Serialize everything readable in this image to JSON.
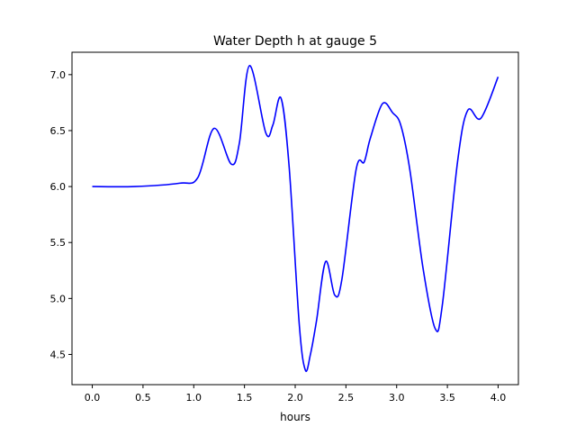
{
  "chart_data": {
    "type": "line",
    "title": "Water Depth h at gauge 5",
    "xlabel": "hours",
    "ylabel": "",
    "xlim": [
      -0.2,
      4.2
    ],
    "ylim": [
      4.23,
      7.2
    ],
    "xticks": [
      0.0,
      0.5,
      1.0,
      1.5,
      2.0,
      2.5,
      3.0,
      3.5,
      4.0
    ],
    "xtick_labels": [
      "0.0",
      "0.5",
      "1.0",
      "1.5",
      "2.0",
      "2.5",
      "3.0",
      "3.5",
      "4.0"
    ],
    "yticks": [
      4.5,
      5.0,
      5.5,
      6.0,
      6.5,
      7.0
    ],
    "ytick_labels": [
      "4.5",
      "5.0",
      "5.5",
      "6.0",
      "6.5",
      "7.0"
    ],
    "grid": false,
    "series": [
      {
        "name": "h",
        "color": "#0000ff",
        "x": [
          0,
          0.42,
          0.86,
          1.04,
          1.2,
          1.37,
          1.45,
          1.55,
          1.71,
          1.78,
          1.86,
          1.94,
          2.04,
          2.1,
          2.15,
          2.21,
          2.3,
          2.39,
          2.46,
          2.6,
          2.68,
          2.74,
          2.86,
          2.96,
          3.04,
          3.13,
          3.26,
          3.38,
          3.45,
          3.6,
          3.7,
          3.83,
          4.0
        ],
        "y": [
          6.0,
          6.0,
          6.03,
          6.08,
          6.52,
          6.2,
          6.39,
          7.08,
          6.48,
          6.55,
          6.79,
          6.18,
          4.77,
          4.36,
          4.5,
          4.8,
          5.33,
          5.03,
          5.17,
          6.15,
          6.22,
          6.43,
          6.74,
          6.66,
          6.55,
          6.15,
          5.27,
          4.73,
          4.94,
          6.22,
          6.68,
          6.61,
          6.98
        ]
      }
    ]
  }
}
